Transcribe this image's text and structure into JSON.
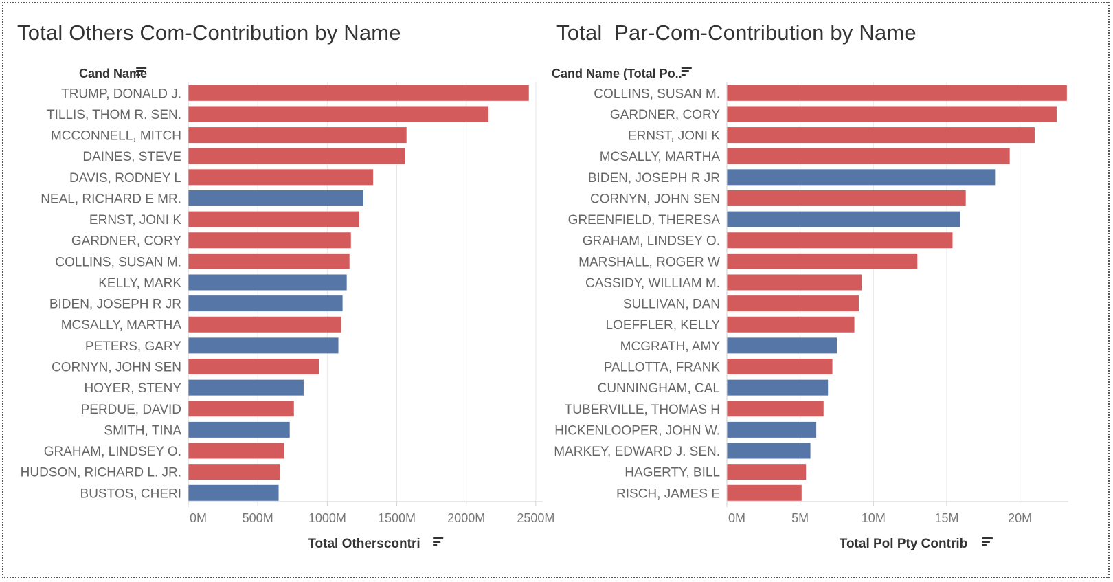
{
  "colors": {
    "republican": "#d45b5b",
    "democrat": "#5576a6",
    "grid": "#e8e8e8",
    "axis": "#d0d0d0"
  },
  "chart_data": [
    {
      "type": "bar",
      "orientation": "horizontal",
      "title": "Total Others Com-Contribution by Name",
      "row_header": "Cand Name",
      "xlabel": "Total Otherscontri",
      "xlim": [
        0,
        2550
      ],
      "x_unit_suffix": "M",
      "ticks": [
        "0M",
        "500M",
        "1000M",
        "1500M",
        "2000M",
        "2500M"
      ],
      "tick_values": [
        0,
        500,
        1000,
        1500,
        2000,
        2500
      ],
      "grid": true,
      "categories": [
        "TRUMP, DONALD J.",
        "TILLIS, THOM R. SEN.",
        "MCCONNELL, MITCH",
        "DAINES, STEVE",
        "DAVIS, RODNEY L",
        "NEAL, RICHARD E MR.",
        "ERNST, JONI K",
        "GARDNER, CORY",
        "COLLINS, SUSAN M.",
        "KELLY, MARK",
        "BIDEN, JOSEPH R JR",
        "MCSALLY, MARTHA",
        "PETERS, GARY",
        "CORNYN, JOHN SEN",
        "HOYER, STENY",
        "PERDUE, DAVID",
        "SMITH, TINA",
        "GRAHAM, LINDSEY O.",
        "HUDSON, RICHARD L. JR.",
        "BUSTOS, CHERI"
      ],
      "values": [
        2450,
        2160,
        1570,
        1560,
        1330,
        1260,
        1230,
        1170,
        1160,
        1140,
        1110,
        1100,
        1080,
        940,
        830,
        760,
        730,
        690,
        660,
        650
      ],
      "party": [
        "R",
        "R",
        "R",
        "R",
        "R",
        "D",
        "R",
        "R",
        "R",
        "D",
        "D",
        "R",
        "D",
        "R",
        "D",
        "R",
        "D",
        "R",
        "R",
        "D"
      ]
    },
    {
      "type": "bar",
      "orientation": "horizontal",
      "title": "Total  Par-Com-Contribution by Name",
      "row_header": "Cand Name (Total Po..",
      "xlabel": "Total Pol Pty Contrib",
      "xlim": [
        0,
        23.3
      ],
      "x_unit_suffix": "M",
      "ticks": [
        "0M",
        "5M",
        "10M",
        "15M",
        "20M"
      ],
      "tick_values": [
        0,
        5,
        10,
        15,
        20
      ],
      "grid": true,
      "categories": [
        "COLLINS, SUSAN M.",
        "GARDNER, CORY",
        "ERNST, JONI K",
        "MCSALLY, MARTHA",
        "BIDEN, JOSEPH R JR",
        "CORNYN, JOHN SEN",
        "GREENFIELD, THERESA",
        "GRAHAM, LINDSEY O.",
        "MARSHALL, ROGER W",
        "CASSIDY, WILLIAM M.",
        "SULLIVAN, DAN",
        "LOEFFLER, KELLY",
        "MCGRATH, AMY",
        "PALLOTTA, FRANK",
        "CUNNINGHAM, CAL",
        "TUBERVILLE, THOMAS H",
        "HICKENLOOPER, JOHN W.",
        "MARKEY, EDWARD J. SEN.",
        "HAGERTY, BILL",
        "RISCH, JAMES E"
      ],
      "values": [
        23.2,
        22.5,
        21.0,
        19.3,
        18.3,
        16.3,
        15.9,
        15.4,
        13.0,
        9.2,
        9.0,
        8.7,
        7.5,
        7.2,
        6.9,
        6.6,
        6.1,
        5.7,
        5.4,
        5.1
      ],
      "party": [
        "R",
        "R",
        "R",
        "R",
        "D",
        "R",
        "D",
        "R",
        "R",
        "R",
        "R",
        "R",
        "D",
        "R",
        "D",
        "R",
        "D",
        "D",
        "R",
        "R"
      ]
    }
  ]
}
